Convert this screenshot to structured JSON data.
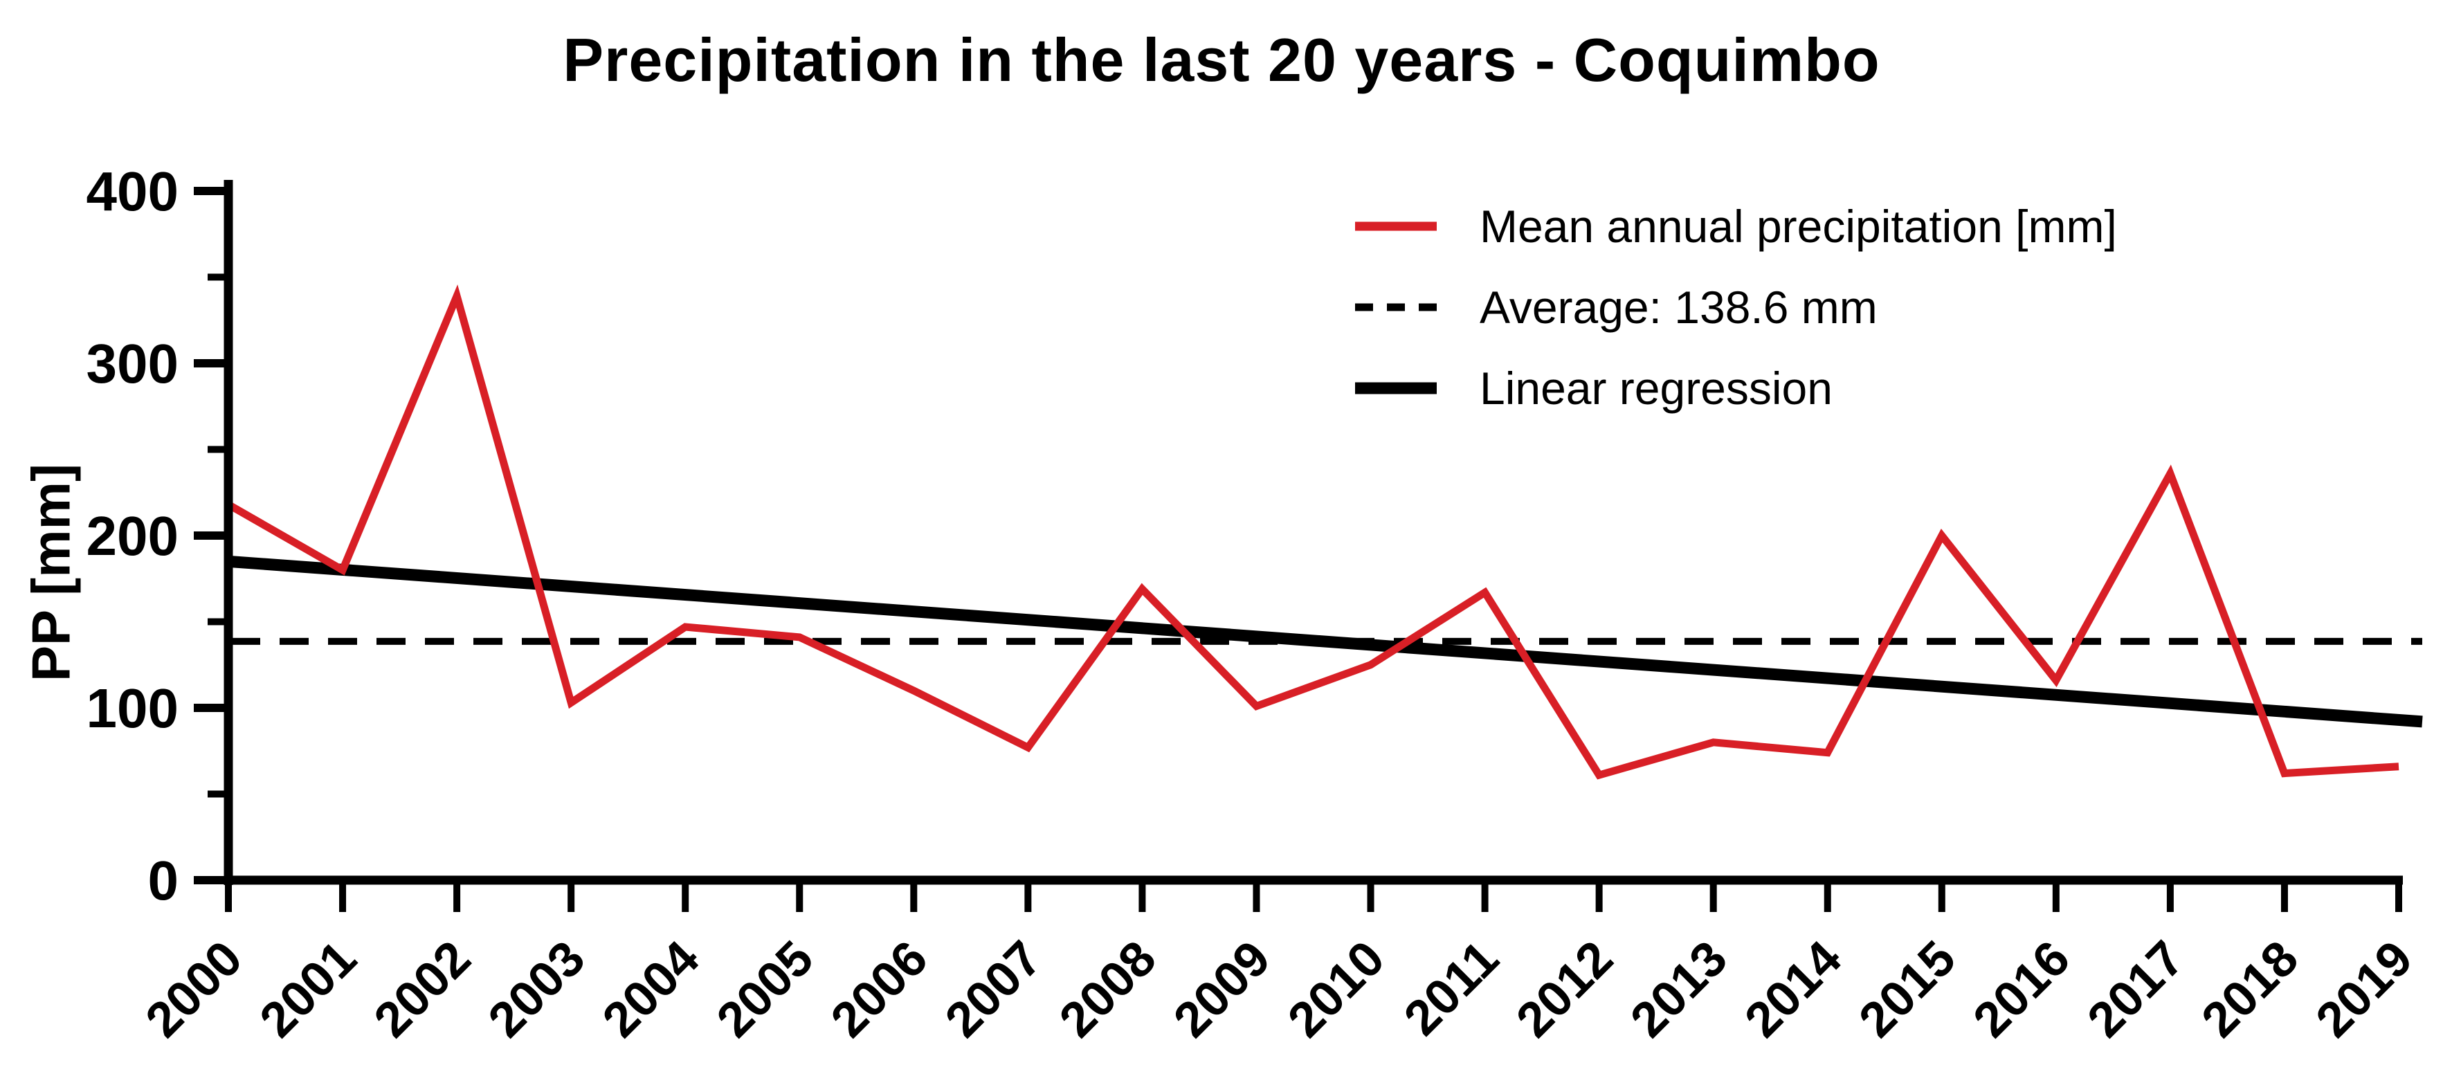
{
  "title": "Precipitation in the last 20 years - Coquimbo",
  "y_axis_title": "PP [mm]",
  "colors": {
    "series_red": "#d81f26",
    "axis_black": "#000000",
    "background": "#ffffff"
  },
  "legend": {
    "position": "top-right-inside",
    "items": [
      {
        "label": "Mean annual precipitation [mm]",
        "marker": "red-solid-line"
      },
      {
        "label": "Average: 138.6 mm",
        "marker": "black-dashed-line"
      },
      {
        "label": "Linear regression",
        "marker": "black-solid-thick-line"
      }
    ]
  },
  "chart_data": {
    "type": "line",
    "title": "Precipitation in the last 20 years - Coquimbo",
    "xlabel": "",
    "ylabel": "PP [mm]",
    "x": [
      2000,
      2001,
      2002,
      2003,
      2004,
      2005,
      2006,
      2007,
      2008,
      2009,
      2010,
      2011,
      2012,
      2013,
      2014,
      2015,
      2016,
      2017,
      2018,
      2019
    ],
    "x_tick_labels": [
      "2000",
      "2001",
      "2002",
      "2003",
      "2004",
      "2005",
      "2006",
      "2007",
      "2008",
      "2009",
      "2010",
      "2011",
      "2012",
      "2013",
      "2014",
      "2015",
      "2016",
      "2017",
      "2018",
      "2019"
    ],
    "series": [
      {
        "name": "Mean annual precipitation [mm]",
        "style": "solid",
        "color": "#d81f26",
        "values": [
          218,
          180,
          339,
          103,
          147,
          141,
          110,
          77,
          169,
          101,
          125,
          167,
          61,
          80,
          74,
          200,
          116,
          236,
          62,
          66
        ]
      },
      {
        "name": "Average: 138.6 mm",
        "style": "dashed",
        "color": "#000000",
        "constant_value": 138.6
      },
      {
        "name": "Linear regression",
        "style": "solid-thick",
        "color": "#000000",
        "start_x": 2000,
        "start_value": 185,
        "end_x": 2019,
        "end_value": 93
      }
    ],
    "average": 138.6,
    "ylim": [
      0,
      400
    ],
    "yticks_major": [
      0,
      100,
      200,
      300,
      400
    ],
    "yticks_minor": [
      50,
      150,
      250,
      350
    ],
    "x_tick_rotation_deg": -45,
    "grid": false,
    "legend_position": "top-right-inside"
  }
}
